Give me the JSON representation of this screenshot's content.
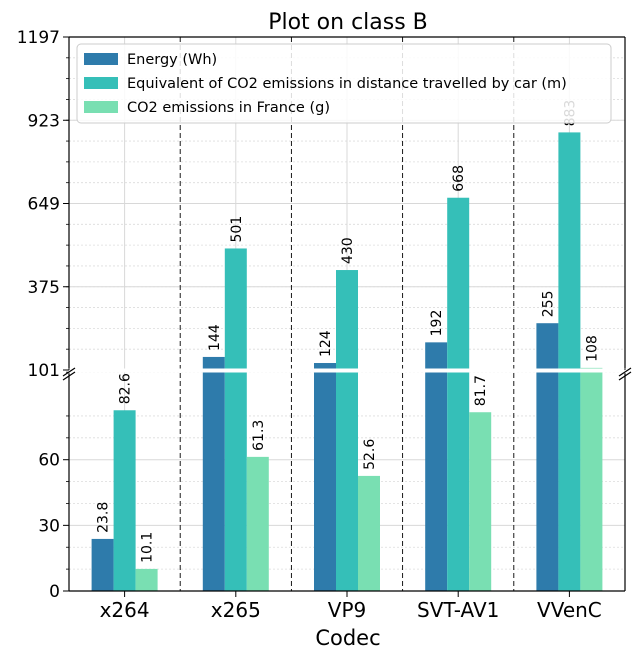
{
  "chart_data": {
    "type": "bar",
    "title": "Plot on class B",
    "xlabel": "Codec",
    "ylabel": "",
    "categories": [
      "x264",
      "x265",
      "VP9",
      "SVT-AV1",
      "VVenC"
    ],
    "series": [
      {
        "name": "Energy (Wh)",
        "color": "#2e7bab",
        "values": [
          23.8,
          144,
          124,
          192,
          255
        ],
        "labels": [
          "23.8",
          "144",
          "124",
          "192",
          "255"
        ]
      },
      {
        "name": "Equivalent of CO2 emissions in distance travelled by car (m)",
        "color": "#35bfb8",
        "values": [
          82.6,
          501,
          430,
          668,
          883
        ],
        "labels": [
          "82.6",
          "501",
          "430",
          "668",
          "883"
        ]
      },
      {
        "name": "CO2 emissions in France (g)",
        "color": "#79dfb2",
        "values": [
          10.1,
          61.3,
          52.6,
          81.7,
          108
        ],
        "labels": [
          "10.1",
          "61.3",
          "52.6",
          "81.7",
          "108"
        ]
      }
    ],
    "y_axis": {
      "broken": true,
      "lower_range": [
        0,
        101
      ],
      "upper_range": [
        101,
        1197
      ],
      "lower_ticks": [
        "0",
        "30",
        "60",
        "101"
      ],
      "upper_ticks": [
        "375",
        "649",
        "923",
        "1197"
      ]
    },
    "legend_position": "top",
    "grid": true
  }
}
